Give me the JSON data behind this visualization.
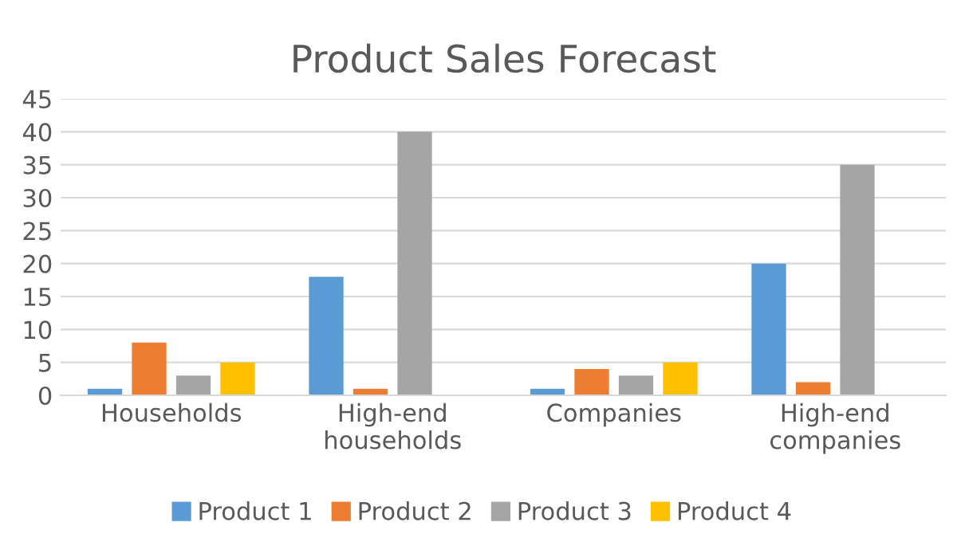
{
  "chart_data": {
    "type": "bar",
    "title": "Product Sales Forecast",
    "categories": [
      "Households",
      "High-end\nhouseholds",
      "Companies",
      "High-end\ncompanies"
    ],
    "series": [
      {
        "name": "Product 1",
        "color": "#5b9bd5",
        "values": [
          1,
          18,
          1,
          20
        ]
      },
      {
        "name": "Product 2",
        "color": "#ed7d31",
        "values": [
          8,
          1,
          4,
          2
        ]
      },
      {
        "name": "Product 3",
        "color": "#a5a5a5",
        "values": [
          3,
          40,
          3,
          35
        ]
      },
      {
        "name": "Product 4",
        "color": "#ffc000",
        "values": [
          5,
          null,
          5,
          null
        ]
      }
    ],
    "ylim": [
      0,
      45
    ],
    "yticks": [
      0,
      5,
      10,
      15,
      20,
      25,
      30,
      35,
      40,
      45
    ],
    "grid": "y",
    "legend": "bottom"
  }
}
